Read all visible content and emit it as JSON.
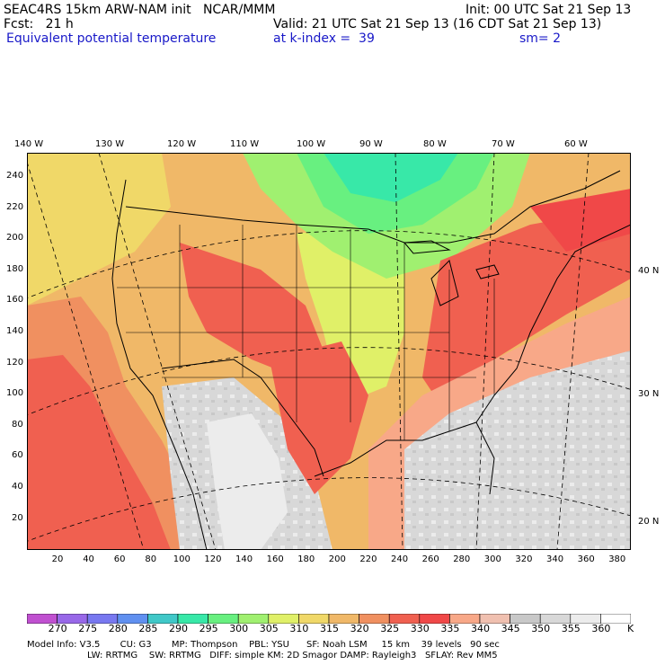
{
  "header": {
    "model": "SEAC4RS 15km ARW-NAM init   NCAR/MMM",
    "init": "Init: 00 UTC Sat 21 Sep 13",
    "fcst_label": "Fcst:   21 h",
    "valid": "Valid: 21 UTC Sat 21 Sep 13 (16 CDT Sat 21 Sep 13)",
    "field": "Equivalent potential temperature",
    "level": "at k-index =  39",
    "smoothing": "sm= 2"
  },
  "top_lon_labels": [
    "140 W",
    "130 W",
    "120 W",
    "110 W",
    "100 W",
    "90 W",
    "80 W",
    "70 W",
    "60 W"
  ],
  "left_grid_labels": [
    "240",
    "220",
    "200",
    "180",
    "160",
    "140",
    "120",
    "100",
    "80",
    "60",
    "40",
    "20"
  ],
  "bottom_grid_labels": [
    "20",
    "40",
    "60",
    "80",
    "100",
    "120",
    "140",
    "160",
    "180",
    "200",
    "220",
    "240",
    "260",
    "280",
    "300",
    "320",
    "340",
    "360",
    "380"
  ],
  "right_lat_labels": [
    "40 N",
    "30 N",
    "20 N"
  ],
  "colorbar": {
    "unit": "K",
    "labels": [
      "270",
      "275",
      "280",
      "285",
      "290",
      "295",
      "300",
      "305",
      "310",
      "315",
      "320",
      "325",
      "330",
      "335",
      "340",
      "345",
      "350",
      "355",
      "360"
    ],
    "colors": [
      "#c050d0",
      "#9868e8",
      "#7878f0",
      "#6090f0",
      "#40c8c8",
      "#38e8a8",
      "#68f080",
      "#a0f070",
      "#e0f068",
      "#f0d868",
      "#f0b868",
      "#f09060",
      "#f06050",
      "#f04848",
      "#f8a888",
      "#f0c0b0",
      "#c8c8c8",
      "#d8d8d8",
      "#ececec",
      "#ffffff"
    ]
  },
  "model_info": {
    "line1": "Model Info: V3.5       CU: G3       MP: Thompson    PBL: YSU      SF: Noah LSM     15 km    39 levels   90 sec",
    "line2": "LW: RRTMG    SW: RRTMG   DIFF: simple KM: 2D Smagor DAMP: Rayleigh3   SFLAY: Rev MM5"
  }
}
